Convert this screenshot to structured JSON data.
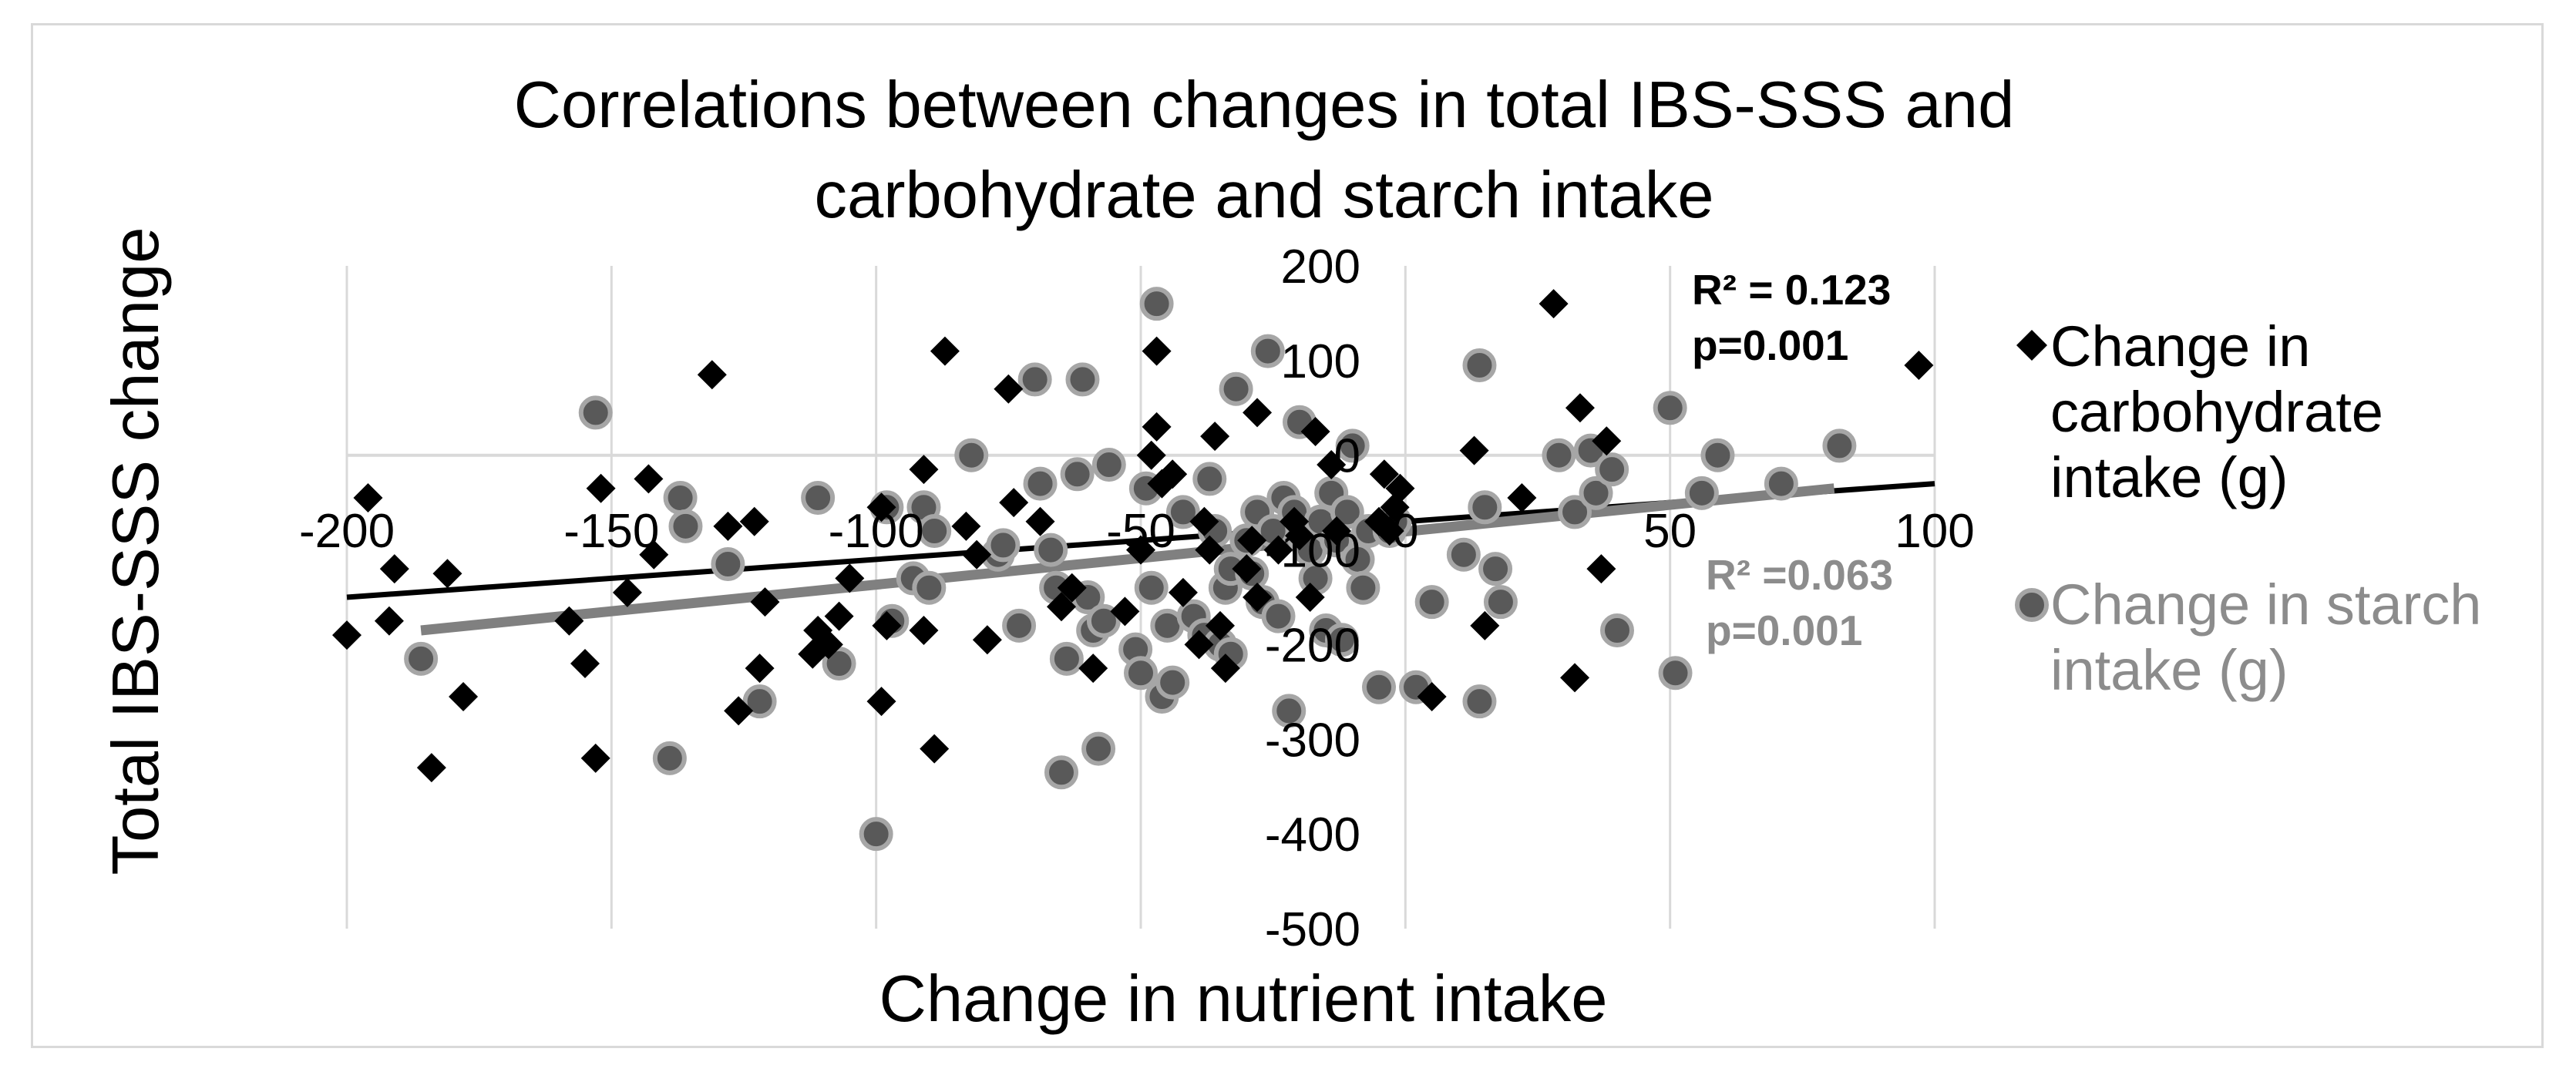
{
  "chart_data": {
    "type": "scatter",
    "title": [
      "Correlations between changes in total IBS-SSS and",
      "carbohydrate and starch intake"
    ],
    "xlabel": "Change in nutrient intake",
    "ylabel": "Total IBS-SSS change",
    "xlim": [
      -200,
      100
    ],
    "ylim": [
      -500,
      200
    ],
    "x_ticks": [
      -200,
      -150,
      -100,
      -50,
      0,
      50,
      100
    ],
    "y_ticks": [
      -500,
      -400,
      -300,
      -200,
      -100,
      0,
      100,
      200
    ],
    "x_tick_labels": [
      "-200",
      "-150",
      "-100",
      "-50",
      "0",
      "50",
      "100"
    ],
    "y_tick_labels": [
      "-500",
      "-400",
      "-300",
      "-200",
      "-100",
      "0",
      "100",
      "200"
    ],
    "grid": "vertical",
    "legend": {
      "position": "right",
      "entries": [
        {
          "label_lines": [
            "Change in",
            "carbohydrate",
            "intake (g)"
          ],
          "marker": "diamond",
          "color": "#000000",
          "text_color": "#000000"
        },
        {
          "label_lines": [
            "Change in starch",
            "intake (g)"
          ],
          "marker": "circle",
          "color": "#595959",
          "text_color": "#8c8c8c"
        }
      ]
    },
    "series": [
      {
        "name": "Change in carbohydrate intake (g)",
        "marker": "diamond",
        "color": "#000000",
        "points": [
          [
            -196,
            -45
          ],
          [
            -191,
            -120
          ],
          [
            -200,
            -190
          ],
          [
            -192,
            -175
          ],
          [
            -184,
            -330
          ],
          [
            -181,
            -125
          ],
          [
            -178,
            -255
          ],
          [
            -158,
            -175
          ],
          [
            -155,
            -220
          ],
          [
            -153,
            -320
          ],
          [
            -152,
            -35
          ],
          [
            -147,
            -145
          ],
          [
            -143,
            -25
          ],
          [
            -142,
            -105
          ],
          [
            -131,
            85
          ],
          [
            -128,
            -75
          ],
          [
            -126,
            -270
          ],
          [
            -123,
            -70
          ],
          [
            -122,
            -225
          ],
          [
            -121,
            -155
          ],
          [
            -111,
            -185
          ],
          [
            -112,
            -210
          ],
          [
            -109,
            -200
          ],
          [
            -107,
            -170
          ],
          [
            -105,
            -130
          ],
          [
            -99,
            -55
          ],
          [
            -99,
            -260
          ],
          [
            -98,
            -180
          ],
          [
            -91,
            -15
          ],
          [
            -91,
            -185
          ],
          [
            -89,
            -310
          ],
          [
            -87,
            110
          ],
          [
            -83,
            -75
          ],
          [
            -81,
            -105
          ],
          [
            -79,
            -195
          ],
          [
            -75,
            70
          ],
          [
            -74,
            -50
          ],
          [
            -69,
            -70
          ],
          [
            -65,
            -160
          ],
          [
            -63,
            -140
          ],
          [
            -59,
            -225
          ],
          [
            -53,
            -165
          ],
          [
            -50,
            -100
          ],
          [
            -48,
            0
          ],
          [
            -47,
            30
          ],
          [
            -47,
            110
          ],
          [
            -46,
            -30
          ],
          [
            -44,
            -20
          ],
          [
            -42,
            -145
          ],
          [
            -39,
            -200
          ],
          [
            -38,
            -70
          ],
          [
            -37,
            -100
          ],
          [
            -36,
            20
          ],
          [
            -35,
            -180
          ],
          [
            -34,
            -225
          ],
          [
            -30,
            -120
          ],
          [
            -29,
            -90
          ],
          [
            -28,
            -150
          ],
          [
            -28,
            45
          ],
          [
            -24,
            -100
          ],
          [
            -21,
            -70
          ],
          [
            -20,
            -85
          ],
          [
            -18,
            -150
          ],
          [
            -17,
            25
          ],
          [
            -14,
            -10
          ],
          [
            -13,
            -80
          ],
          [
            -5,
            -70
          ],
          [
            -3,
            -80
          ],
          [
            -2,
            -55
          ],
          [
            -4,
            -20
          ],
          [
            -1,
            -35
          ],
          [
            5,
            -255
          ],
          [
            13,
            5
          ],
          [
            15,
            -180
          ],
          [
            22,
            -45
          ],
          [
            28,
            160
          ],
          [
            32,
            -235
          ],
          [
            33,
            50
          ],
          [
            37,
            -120
          ],
          [
            38,
            15
          ],
          [
            97,
            95
          ]
        ]
      },
      {
        "name": "Change in starch intake (g)",
        "marker": "circle",
        "color": "#595959",
        "points": [
          [
            -186,
            -215
          ],
          [
            -153,
            45
          ],
          [
            -139,
            -320
          ],
          [
            -137,
            -45
          ],
          [
            -136,
            -75
          ],
          [
            -128,
            -115
          ],
          [
            -122,
            -260
          ],
          [
            -111,
            -45
          ],
          [
            -107,
            -220
          ],
          [
            -100,
            -400
          ],
          [
            -98,
            -55
          ],
          [
            -97,
            -175
          ],
          [
            -93,
            -130
          ],
          [
            -91,
            -55
          ],
          [
            -90,
            -140
          ],
          [
            -89,
            -80
          ],
          [
            -82,
            0
          ],
          [
            -77,
            -105
          ],
          [
            -76,
            -95
          ],
          [
            -73,
            -180
          ],
          [
            -70,
            80
          ],
          [
            -69,
            -30
          ],
          [
            -67,
            -100
          ],
          [
            -66,
            -140
          ],
          [
            -65,
            -335
          ],
          [
            -64,
            -215
          ],
          [
            -62,
            -20
          ],
          [
            -61,
            80
          ],
          [
            -60,
            -150
          ],
          [
            -59,
            -185
          ],
          [
            -58,
            -310
          ],
          [
            -57,
            -175
          ],
          [
            -56,
            -10
          ],
          [
            -51,
            -205
          ],
          [
            -50,
            -230
          ],
          [
            -49,
            -35
          ],
          [
            -48,
            -140
          ],
          [
            -47,
            160
          ],
          [
            -46,
            -255
          ],
          [
            -45,
            -180
          ],
          [
            -44,
            -240
          ],
          [
            -42,
            -60
          ],
          [
            -40,
            -170
          ],
          [
            -38,
            -190
          ],
          [
            -37,
            -25
          ],
          [
            -36,
            -80
          ],
          [
            -35,
            -200
          ],
          [
            -34,
            -140
          ],
          [
            -33,
            -120
          ],
          [
            -33,
            -210
          ],
          [
            -32,
            70
          ],
          [
            -30,
            -90
          ],
          [
            -29,
            -125
          ],
          [
            -28,
            -60
          ],
          [
            -27,
            -155
          ],
          [
            -26,
            110
          ],
          [
            -25,
            -80
          ],
          [
            -24,
            -170
          ],
          [
            -23,
            -45
          ],
          [
            -22,
            -270
          ],
          [
            -21,
            -60
          ],
          [
            -20,
            35
          ],
          [
            -19,
            -90
          ],
          [
            -18,
            -100
          ],
          [
            -17,
            -130
          ],
          [
            -16,
            -70
          ],
          [
            -15,
            -185
          ],
          [
            -14,
            -40
          ],
          [
            -13,
            -90
          ],
          [
            -12,
            -195
          ],
          [
            -11,
            -60
          ],
          [
            -10,
            10
          ],
          [
            -9,
            -110
          ],
          [
            -8,
            -140
          ],
          [
            -7,
            -80
          ],
          [
            -5,
            -245
          ],
          [
            -3,
            -80
          ],
          [
            -2,
            -70
          ],
          [
            2,
            -245
          ],
          [
            5,
            -155
          ],
          [
            11,
            -105
          ],
          [
            14,
            -260
          ],
          [
            14,
            95
          ],
          [
            15,
            -55
          ],
          [
            17,
            -120
          ],
          [
            18,
            -155
          ],
          [
            29,
            0
          ],
          [
            32,
            -60
          ],
          [
            35,
            5
          ],
          [
            36,
            -40
          ],
          [
            39,
            -15
          ],
          [
            40,
            -185
          ],
          [
            50,
            50
          ],
          [
            51,
            -230
          ],
          [
            56,
            -40
          ],
          [
            59,
            0
          ],
          [
            71,
            -30
          ],
          [
            82,
            10
          ]
        ]
      }
    ],
    "trendlines": [
      {
        "series": "Change in carbohydrate intake (g)",
        "x": [
          -200,
          100
        ],
        "y": [
          -150,
          -30
        ],
        "color": "#000000",
        "annotation": [
          "R² = 0.123",
          "p=0.001"
        ]
      },
      {
        "series": "Change in starch intake (g)",
        "x": [
          -186,
          81
        ],
        "y": [
          -185,
          -35
        ],
        "color": "#808080",
        "annotation": [
          "R² =0.063",
          "p=0.001"
        ]
      }
    ]
  }
}
